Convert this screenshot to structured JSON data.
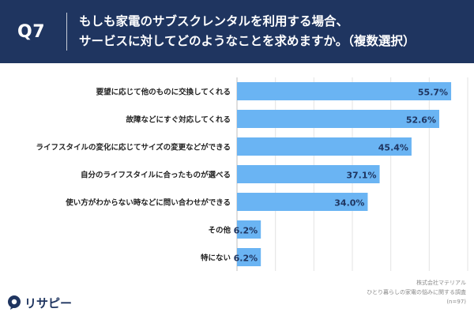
{
  "header": {
    "question_number": "Q7",
    "question_line1": "もしも家電のサブスクレンタルを利用する場合、",
    "question_line2": "サービスに対してどのようなことを求めますか。（複数選択）"
  },
  "footer": {
    "company": "株式会社マテリアル",
    "survey": "ひとり暮らしの家電の悩みに関する調査",
    "sample": "(n=97)"
  },
  "logo": {
    "text": "リサピー"
  },
  "chart_data": {
    "type": "bar",
    "orientation": "horizontal",
    "categories": [
      "要望に応じて他のものに交換してくれる",
      "故障などにすぐ対応してくれる",
      "ライフスタイルの変化に応じてサイズの変更などができる",
      "自分のライフスタイルに合ったものが選べる",
      "使い方がわからない時などに問い合わせができる",
      "その他",
      "特にない"
    ],
    "values": [
      55.7,
      52.6,
      45.4,
      37.1,
      34.0,
      6.2,
      6.2
    ],
    "value_labels": [
      "55.7%",
      "52.6%",
      "45.4%",
      "37.1%",
      "34.0%",
      "6.2%",
      "6.2%"
    ],
    "xlim": [
      0,
      60
    ],
    "grid": true,
    "bar_color": "#6ab4f3",
    "value_label_color": "#1f3560"
  }
}
